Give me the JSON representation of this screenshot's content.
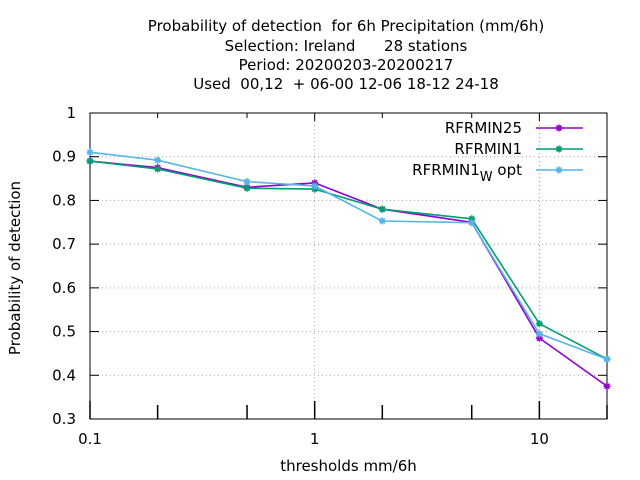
{
  "chart_data": {
    "type": "line",
    "title_lines": [
      "Probability of detection  for 6h Precipitation (mm/6h)",
      "Selection: Ireland      28 stations",
      "Period: 20200203-20200217",
      "Used  00,12  + 06-00 12-06 18-12 24-18"
    ],
    "xlabel": "thresholds mm/6h",
    "ylabel": "Probability of detection",
    "xscale": "log",
    "xlim": [
      0.1,
      20
    ],
    "ylim": [
      0.3,
      1.0
    ],
    "x_ticks": [
      0.1,
      1,
      10
    ],
    "x_tick_labels": [
      "0.1",
      "1",
      "10"
    ],
    "x_minor_ticks": [
      0.2,
      0.5,
      2,
      5,
      20
    ],
    "y_ticks": [
      0.3,
      0.4,
      0.5,
      0.6,
      0.7,
      0.8,
      0.9,
      1.0
    ],
    "y_tick_labels": [
      "0.3",
      "0.4",
      "0.5",
      "0.6",
      "0.7",
      "0.8",
      "0.9",
      "1"
    ],
    "grid": true,
    "legend_position": "top-right",
    "x": [
      0.1,
      0.2,
      0.5,
      1,
      2,
      5,
      10,
      20
    ],
    "series": [
      {
        "name": "RFRMIN25",
        "color": "#9400d3",
        "values": [
          0.89,
          0.875,
          0.83,
          0.84,
          0.78,
          0.75,
          0.485,
          0.375
        ]
      },
      {
        "name": "RFRMIN1",
        "color": "#009e73",
        "values": [
          0.89,
          0.872,
          0.828,
          0.826,
          0.78,
          0.758,
          0.518,
          0.437
        ]
      },
      {
        "name": "RFRMIN1",
        "name_subscript": "W",
        "name_suffix": " opt",
        "color": "#56b4e9",
        "values": [
          0.91,
          0.892,
          0.843,
          0.833,
          0.753,
          0.749,
          0.495,
          0.437
        ]
      }
    ]
  }
}
